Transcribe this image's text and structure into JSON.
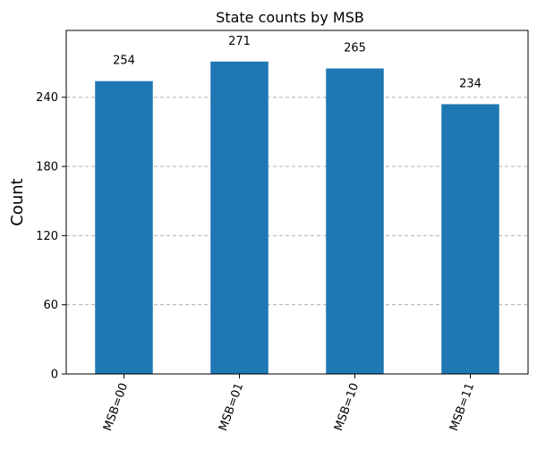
{
  "chart_data": {
    "type": "bar",
    "title": "State counts by MSB",
    "xlabel": "",
    "ylabel": "Count",
    "categories": [
      "MSB=00",
      "MSB=01",
      "MSB=10",
      "MSB=11"
    ],
    "values": [
      254,
      271,
      265,
      234
    ],
    "data_labels": [
      "254",
      "271",
      "265",
      "234"
    ],
    "ylim": [
      0,
      298
    ],
    "yticks": [
      0,
      60,
      120,
      180,
      240
    ],
    "ytick_labels": [
      "0",
      "60",
      "120",
      "180",
      "240"
    ],
    "bar_color": "#1f77b4",
    "grid": "y-dashed",
    "legend": "none"
  }
}
